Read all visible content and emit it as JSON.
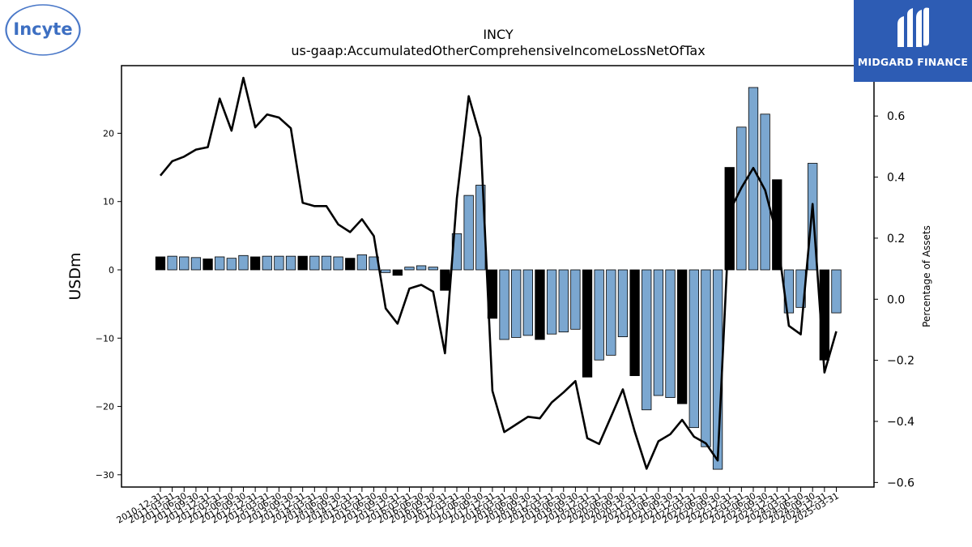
{
  "logos": {
    "left_text": "Incyte",
    "right_text": "MIDGARD FINANCE"
  },
  "chart_data": {
    "type": "bar+line",
    "title": "INCY",
    "subtitle": "us-gaap:AccumulatedOtherComprehensiveIncomeLossNetOfTax",
    "ylabel": "USDm",
    "y2label": "Percentage of Assets",
    "ylim": [
      -31.8,
      29.9
    ],
    "y2lim": [
      -0.615,
      0.765
    ],
    "yticks": [
      -30,
      -20,
      -10,
      0,
      10,
      20
    ],
    "y2ticks": [
      -0.6,
      -0.4,
      -0.2,
      0.0,
      0.2,
      0.4,
      0.6
    ],
    "ytick_labels": [
      "−30",
      "−20",
      "−10",
      "0",
      "10",
      "20"
    ],
    "y2tick_labels": [
      "−0.6",
      "−0.4",
      "−0.2",
      "0.0",
      "0.2",
      "0.4",
      "0.6"
    ],
    "colors": {
      "bar_default": "#7ba7d0",
      "bar_q4": "#000000",
      "line": "#000000"
    },
    "categories": [
      "2010-12-31",
      "2011-03-31",
      "2011-06-30",
      "2011-09-30",
      "2011-12-31",
      "2012-03-31",
      "2012-06-30",
      "2012-09-30",
      "2012-12-31",
      "2013-03-31",
      "2013-06-30",
      "2013-09-30",
      "2013-12-31",
      "2014-03-31",
      "2014-06-30",
      "2014-09-30",
      "2014-12-31",
      "2015-03-31",
      "2015-06-30",
      "2015-09-30",
      "2015-12-31",
      "2016-03-31",
      "2016-06-30",
      "2016-09-30",
      "2016-12-31",
      "2017-03-31",
      "2017-06-30",
      "2017-09-30",
      "2017-12-31",
      "2018-03-31",
      "2018-06-30",
      "2018-09-30",
      "2018-12-31",
      "2019-03-31",
      "2019-06-30",
      "2019-09-30",
      "2019-12-31",
      "2020-03-31",
      "2020-06-30",
      "2020-09-30",
      "2020-12-31",
      "2021-03-31",
      "2021-06-30",
      "2021-09-30",
      "2021-12-31",
      "2022-03-31",
      "2022-06-30",
      "2022-09-30",
      "2022-12-31",
      "2023-03-31",
      "2023-06-30",
      "2023-09-30",
      "2023-12-31",
      "2024-03-31",
      "2024-06-30",
      "2024-09-30",
      "2024-12-31",
      "2025-03-31"
    ],
    "series": [
      {
        "name": "USDm",
        "type": "bar",
        "values": [
          1.9,
          2.0,
          1.9,
          1.8,
          1.6,
          1.9,
          1.7,
          2.1,
          1.9,
          2.0,
          2.0,
          2.0,
          2.0,
          2.0,
          2.0,
          1.9,
          1.7,
          2.2,
          1.9,
          -0.4,
          -0.8,
          0.4,
          0.6,
          0.4,
          -3.0,
          5.3,
          10.9,
          12.4,
          -7.1,
          -10.2,
          -9.9,
          -9.6,
          -10.2,
          -9.4,
          -9.1,
          -8.7,
          -15.7,
          -13.2,
          -12.5,
          -9.8,
          -15.5,
          -20.5,
          -18.4,
          -18.7,
          -19.6,
          -23.1,
          -25.9,
          -29.2,
          15.0,
          20.9,
          26.7,
          22.8,
          13.2,
          -6.3,
          -5.5,
          15.6,
          -13.2,
          -6.3
        ]
      },
      {
        "name": "Percentage of Assets",
        "type": "line",
        "axis": "right",
        "values": [
          0.405,
          0.452,
          0.467,
          0.49,
          0.498,
          0.657,
          0.552,
          0.725,
          0.563,
          0.605,
          0.595,
          0.56,
          0.316,
          0.305,
          0.305,
          0.245,
          0.22,
          0.262,
          0.207,
          -0.03,
          -0.08,
          0.035,
          0.047,
          0.025,
          -0.177,
          0.33,
          0.665,
          0.529,
          -0.3,
          -0.435,
          -0.41,
          -0.385,
          -0.39,
          -0.338,
          -0.305,
          -0.268,
          -0.455,
          -0.474,
          -0.385,
          -0.295,
          -0.433,
          -0.555,
          -0.465,
          -0.442,
          -0.395,
          -0.45,
          -0.472,
          -0.528,
          0.288,
          0.365,
          0.43,
          0.357,
          0.208,
          -0.087,
          -0.115,
          0.312,
          -0.24,
          -0.105
        ]
      }
    ]
  }
}
